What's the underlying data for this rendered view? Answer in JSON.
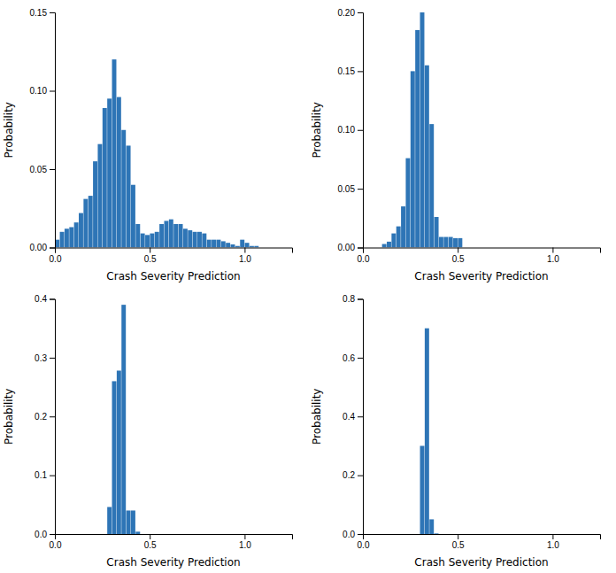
{
  "chart_data": [
    {
      "type": "bar",
      "x_label": "Crash Severity Prediction",
      "y_label": "Probability",
      "color": "#2E75B6",
      "xlim": [
        0,
        1.25
      ],
      "ylim": [
        0,
        0.15
      ],
      "xticks": [
        {
          "value": 0,
          "label": "0.0"
        },
        0.5,
        {
          "value": 1,
          "label": "1.0"
        }
      ],
      "yticks": [
        {
          "value": 0,
          "label": "0.00"
        },
        0.05,
        {
          "value": 0.1,
          "label": "0.10"
        },
        0.15
      ],
      "x": [
        0.0125,
        0.0375,
        0.0625,
        0.0875,
        0.1125,
        0.1375,
        0.1625,
        0.1875,
        0.2125,
        0.2375,
        0.2625,
        0.2875,
        0.3125,
        0.3375,
        0.3625,
        0.3875,
        0.4125,
        0.4375,
        0.4625,
        0.4875,
        0.5125,
        0.5375,
        0.5625,
        0.5875,
        0.6125,
        0.6375,
        0.6625,
        0.6875,
        0.7125,
        0.7375,
        0.7625,
        0.7875,
        0.8125,
        0.8375,
        0.8625,
        0.8875,
        0.9125,
        0.9375,
        0.9625,
        0.9875,
        1.0125,
        1.0375,
        1.0625,
        1.0875,
        1.1125,
        1.1375,
        1.1625,
        1.1875
      ],
      "values": [
        0.005,
        0.01,
        0.012,
        0.013,
        0.016,
        0.022,
        0.031,
        0.033,
        0.055,
        0.066,
        0.089,
        0.095,
        0.12,
        0.096,
        0.075,
        0.065,
        0.04,
        0.015,
        0.009,
        0.008,
        0.009,
        0.01,
        0.015,
        0.017,
        0.018,
        0.015,
        0.015,
        0.012,
        0.011,
        0.01,
        0.01,
        0.009,
        0.005,
        0.005,
        0.005,
        0.004,
        0.003,
        0.002,
        0.001,
        0.005,
        0.003,
        0.001,
        0.001,
        0.0,
        0.0,
        0.0,
        0.0,
        0.0
      ]
    },
    {
      "type": "bar",
      "x_label": "Crash Severity Prediction",
      "y_label": "Probability",
      "color": "#2E75B6",
      "xlim": [
        0,
        1.25
      ],
      "ylim": [
        0,
        0.2
      ],
      "xticks": [
        {
          "value": 0,
          "label": "0.0"
        },
        0.5,
        {
          "value": 1,
          "label": "1.0"
        }
      ],
      "yticks": [
        {
          "value": 0,
          "label": "0.00"
        },
        0.05,
        {
          "value": 0.1,
          "label": "0.10"
        },
        0.15,
        {
          "value": 0.2,
          "label": "0.20"
        }
      ],
      "x": [
        0.1125,
        0.1375,
        0.1625,
        0.1875,
        0.2125,
        0.2375,
        0.2625,
        0.2875,
        0.3125,
        0.3375,
        0.3625,
        0.3875,
        0.4125,
        0.4375,
        0.4625,
        0.4875,
        0.5125,
        0.5375,
        0.5625,
        0.5875,
        0.6125,
        0.6375,
        0.6625,
        0.6875
      ],
      "values": [
        0.003,
        0.005,
        0.012,
        0.018,
        0.035,
        0.076,
        0.15,
        0.185,
        0.2,
        0.155,
        0.105,
        0.026,
        0.009,
        0.009,
        0.009,
        0.008,
        0.008,
        0.0,
        0.0,
        0.0,
        0.0,
        0.0,
        0.0,
        0.0
      ]
    },
    {
      "type": "bar",
      "x_label": "Crash Severity Prediction",
      "y_label": "Probability",
      "color": "#2E75B6",
      "xlim": [
        0,
        1.25
      ],
      "ylim": [
        0,
        0.4
      ],
      "xticks": [
        {
          "value": 0,
          "label": "0.0"
        },
        0.5,
        {
          "value": 1,
          "label": "1.0"
        }
      ],
      "yticks": [
        {
          "value": 0,
          "label": "0.0"
        },
        0.1,
        0.2,
        0.3,
        0.4
      ],
      "x": [
        0.2875,
        0.3125,
        0.3375,
        0.3625,
        0.3875,
        0.4125,
        0.4375
      ],
      "values": [
        0.046,
        0.26,
        0.278,
        0.39,
        0.04,
        0.04,
        0.004
      ]
    },
    {
      "type": "bar",
      "x_label": "Crash Severity Prediction",
      "y_label": "Probability",
      "color": "#2E75B6",
      "xlim": [
        0,
        1.25
      ],
      "ylim": [
        0,
        0.8
      ],
      "xticks": [
        {
          "value": 0,
          "label": "0.0"
        },
        0.5,
        {
          "value": 1,
          "label": "1.0"
        }
      ],
      "yticks": [
        {
          "value": 0,
          "label": "0.0"
        },
        0.2,
        0.4,
        0.6,
        0.8
      ],
      "x": [
        0.3125,
        0.3375,
        0.3625,
        0.3875
      ],
      "values": [
        0.3,
        0.7,
        0.05,
        0.002
      ]
    }
  ]
}
